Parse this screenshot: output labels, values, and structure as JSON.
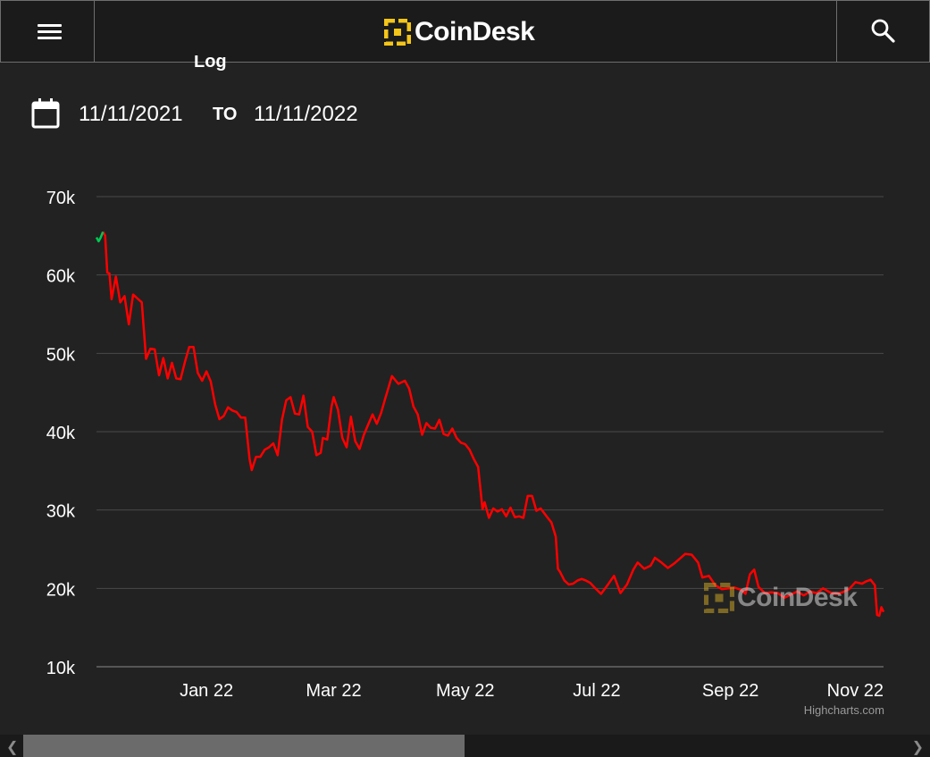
{
  "header": {
    "brand": "CoinDesk",
    "menu_icon": "hamburger-menu-icon",
    "search_icon": "search-icon"
  },
  "scale_label": "Log",
  "date_range": {
    "icon": "calendar-icon",
    "from": "11/11/2021",
    "to_label": "TO",
    "to": "11/11/2022"
  },
  "watermark": "CoinDesk",
  "credits": "Highcharts.com",
  "colors": {
    "background": "#222222",
    "line_down": "#ff0000",
    "line_up": "#00c853",
    "brand_yellow": "#f5c518",
    "grid": "#4a4a4a"
  },
  "chart_data": {
    "type": "line",
    "ylim": [
      10000,
      70000
    ],
    "yticks": [
      "10k",
      "20k",
      "30k",
      "40k",
      "50k",
      "60k",
      "70k"
    ],
    "ytick_values": [
      10000,
      20000,
      30000,
      40000,
      50000,
      60000,
      70000
    ],
    "xlim": [
      "2021-11-11",
      "2022-11-11"
    ],
    "xticks": [
      "Jan 22",
      "Mar 22",
      "May 22",
      "Jul 22",
      "Sep 22",
      "Nov 22"
    ],
    "xtick_dates": [
      "2022-01-01",
      "2022-03-01",
      "2022-05-01",
      "2022-07-01",
      "2022-09-01",
      "2022-11-01"
    ],
    "grid": true,
    "series": [
      {
        "x": [
          "2021-11-11",
          "2021-11-12",
          "2021-11-13",
          "2021-11-14",
          "2021-11-15",
          "2021-11-16",
          "2021-11-17",
          "2021-11-18",
          "2021-11-20",
          "2021-11-22",
          "2021-11-24",
          "2021-11-26",
          "2021-11-28",
          "2021-11-30",
          "2021-12-02",
          "2021-12-04",
          "2021-12-06",
          "2021-12-08",
          "2021-12-10",
          "2021-12-12",
          "2021-12-14",
          "2021-12-16",
          "2021-12-18",
          "2021-12-20",
          "2021-12-22",
          "2021-12-24",
          "2021-12-26",
          "2021-12-28",
          "2021-12-30",
          "2022-01-01",
          "2022-01-03",
          "2022-01-05",
          "2022-01-07",
          "2022-01-09",
          "2022-01-11",
          "2022-01-13",
          "2022-01-15",
          "2022-01-17",
          "2022-01-19",
          "2022-01-21",
          "2022-01-22",
          "2022-01-24",
          "2022-01-26",
          "2022-01-28",
          "2022-01-30",
          "2022-02-01",
          "2022-02-03",
          "2022-02-05",
          "2022-02-07",
          "2022-02-09",
          "2022-02-11",
          "2022-02-13",
          "2022-02-15",
          "2022-02-17",
          "2022-02-19",
          "2022-02-21",
          "2022-02-23",
          "2022-02-24",
          "2022-02-26",
          "2022-02-28",
          "2022-03-01",
          "2022-03-03",
          "2022-03-05",
          "2022-03-07",
          "2022-03-09",
          "2022-03-11",
          "2022-03-13",
          "2022-03-15",
          "2022-03-17",
          "2022-03-19",
          "2022-03-21",
          "2022-03-23",
          "2022-03-25",
          "2022-03-28",
          "2022-03-31",
          "2022-04-03",
          "2022-04-05",
          "2022-04-07",
          "2022-04-09",
          "2022-04-11",
          "2022-04-13",
          "2022-04-15",
          "2022-04-17",
          "2022-04-19",
          "2022-04-21",
          "2022-04-23",
          "2022-04-25",
          "2022-04-27",
          "2022-04-29",
          "2022-05-01",
          "2022-05-03",
          "2022-05-05",
          "2022-05-07",
          "2022-05-09",
          "2022-05-10",
          "2022-05-12",
          "2022-05-14",
          "2022-05-16",
          "2022-05-18",
          "2022-05-20",
          "2022-05-22",
          "2022-05-24",
          "2022-05-26",
          "2022-05-28",
          "2022-05-30",
          "2022-06-01",
          "2022-06-03",
          "2022-06-05",
          "2022-06-08",
          "2022-06-10",
          "2022-06-12",
          "2022-06-13",
          "2022-06-14",
          "2022-06-16",
          "2022-06-18",
          "2022-06-20",
          "2022-06-22",
          "2022-06-24",
          "2022-06-26",
          "2022-06-28",
          "2022-06-30",
          "2022-07-03",
          "2022-07-06",
          "2022-07-09",
          "2022-07-12",
          "2022-07-15",
          "2022-07-18",
          "2022-07-20",
          "2022-07-23",
          "2022-07-26",
          "2022-07-28",
          "2022-07-31",
          "2022-08-03",
          "2022-08-06",
          "2022-08-09",
          "2022-08-11",
          "2022-08-14",
          "2022-08-17",
          "2022-08-19",
          "2022-08-22",
          "2022-08-25",
          "2022-08-28",
          "2022-08-31",
          "2022-09-03",
          "2022-09-06",
          "2022-09-08",
          "2022-09-10",
          "2022-09-12",
          "2022-09-14",
          "2022-09-17",
          "2022-09-20",
          "2022-09-23",
          "2022-09-26",
          "2022-09-29",
          "2022-10-02",
          "2022-10-05",
          "2022-10-08",
          "2022-10-11",
          "2022-10-14",
          "2022-10-17",
          "2022-10-20",
          "2022-10-23",
          "2022-10-26",
          "2022-10-29",
          "2022-11-01",
          "2022-11-03",
          "2022-11-05",
          "2022-11-07",
          "2022-11-08",
          "2022-11-09",
          "2022-11-10",
          "2022-11-11"
        ],
        "y": [
          64800,
          64300,
          64800,
          65500,
          65000,
          60300,
          60200,
          56900,
          59800,
          56500,
          57300,
          53700,
          57500,
          57000,
          56500,
          49300,
          50600,
          50500,
          47200,
          49400,
          46800,
          48800,
          46800,
          46700,
          48900,
          50800,
          50800,
          47500,
          46500,
          47700,
          46400,
          43500,
          41600,
          42000,
          43100,
          42700,
          42500,
          41800,
          41800,
          36500,
          35100,
          36800,
          36800,
          37700,
          38000,
          38500,
          37000,
          41500,
          44000,
          44400,
          42300,
          42200,
          44600,
          40600,
          40000,
          37000,
          37300,
          39200,
          39000,
          43200,
          44400,
          42800,
          39200,
          38000,
          41900,
          38800,
          37800,
          39600,
          40900,
          42200,
          41000,
          42400,
          44300,
          47100,
          46100,
          46500,
          45500,
          43200,
          42200,
          39600,
          41100,
          40500,
          40400,
          41500,
          39700,
          39500,
          40400,
          39200,
          38600,
          38400,
          37700,
          36500,
          35500,
          30100,
          31000,
          29000,
          30200,
          29800,
          30100,
          29200,
          30300,
          29100,
          29200,
          29000,
          31800,
          31800,
          29900,
          30200,
          29100,
          28400,
          26600,
          22500,
          22100,
          21000,
          20500,
          20600,
          21000,
          21200,
          21000,
          20700,
          20100,
          19300,
          20400,
          21600,
          19400,
          20500,
          22400,
          23300,
          22500,
          22900,
          23900,
          23300,
          22600,
          23200,
          23900,
          24400,
          24300,
          23300,
          21400,
          21600,
          20400,
          19900,
          20000,
          20100,
          19800,
          19300,
          21800,
          22400,
          20200,
          19400,
          19500,
          19400,
          18800,
          19200,
          19600,
          19100,
          19600,
          19400,
          20000,
          19500,
          19300,
          19500,
          19900,
          20800,
          20600,
          20900,
          21100,
          20400,
          16600,
          16500,
          17600,
          17000
        ]
      }
    ]
  }
}
